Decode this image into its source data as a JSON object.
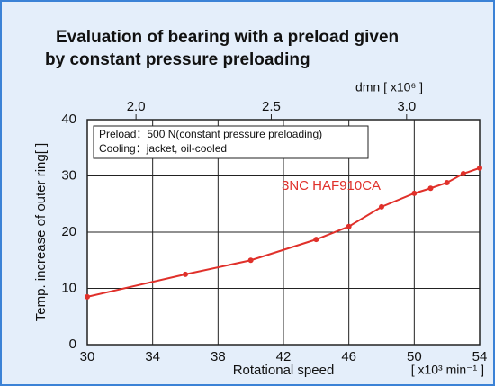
{
  "chart_data": {
    "type": "line",
    "title": [
      "Evaluation of bearing with a preload given",
      "by constant pressure preloading"
    ],
    "x_label": "Rotational speed",
    "x_unit": "[ x10³ min⁻¹ ]",
    "y_label": "Temp. increase of outer ring[   ]",
    "x2_label": "dmn [ x10⁶ ]",
    "annotations": [
      "Preload：500 N(constant pressure preloading)",
      "Cooling：jacket, oil-cooled"
    ],
    "xlim": [
      30,
      54
    ],
    "xticks": [
      30,
      34,
      38,
      42,
      46,
      50,
      54
    ],
    "ylim": [
      0,
      40
    ],
    "yticks": [
      0,
      10,
      20,
      30,
      40
    ],
    "x2lim": [
      1.82,
      3.27
    ],
    "x2ticks": [
      {
        "value": 2.0,
        "label": "2.0"
      },
      {
        "value": 2.5,
        "label": "2.5"
      },
      {
        "value": 3.0,
        "label": "3.0"
      }
    ],
    "grid": true,
    "x": [
      30,
      36,
      40,
      44,
      46,
      48,
      50,
      51,
      52,
      53,
      54
    ],
    "series": [
      {
        "name": "3NC HAF910CA",
        "color": "#e0302a",
        "values": [
          8.5,
          12.5,
          15,
          18.7,
          21,
          24.5,
          26.9,
          27.8,
          28.8,
          30.4,
          31.4
        ]
      }
    ]
  }
}
